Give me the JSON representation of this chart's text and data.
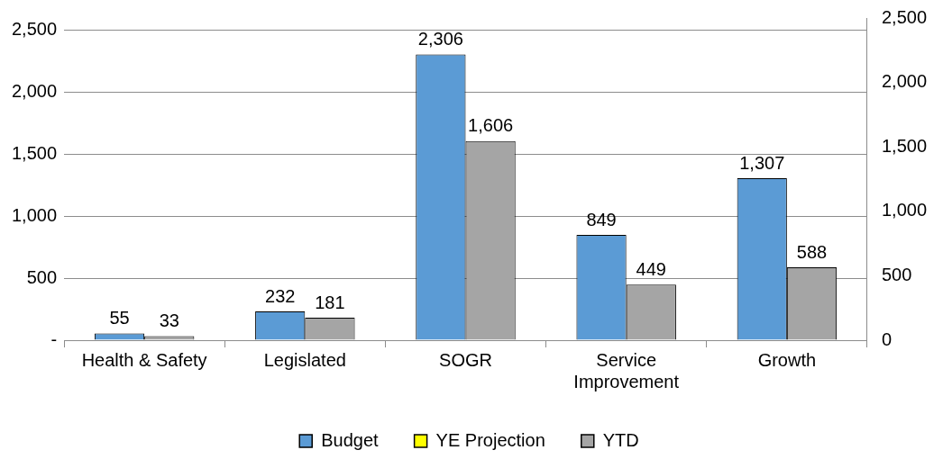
{
  "chart_data": {
    "type": "bar",
    "categories": [
      "Health & Safety",
      "Legislated",
      "SOGR",
      "Service Improvement",
      "Growth"
    ],
    "series": [
      {
        "name": "Budget",
        "color": "#5b9bd5",
        "values": [
          55,
          232,
          2306,
          849,
          1307
        ],
        "value_labels": [
          "55",
          "232",
          "2,306",
          "849",
          "1,307"
        ]
      },
      {
        "name": "YE Projection",
        "color": "#ffff00",
        "axis": "y2",
        "values": [
          null,
          null,
          null,
          null,
          null
        ]
      },
      {
        "name": "YTD",
        "color": "#a5a5a5",
        "values": [
          33,
          181,
          1606,
          449,
          588
        ],
        "value_labels": [
          "33",
          "181",
          "1,606",
          "449",
          "588"
        ]
      }
    ],
    "ylim": [
      0,
      2600
    ],
    "yticks": [
      {
        "value": 0,
        "label": "-"
      },
      {
        "value": 500,
        "label": "500"
      },
      {
        "value": 1000,
        "label": "1,000"
      },
      {
        "value": 1500,
        "label": "1,500"
      },
      {
        "value": 2000,
        "label": "2,000"
      },
      {
        "value": 2500,
        "label": "2,500"
      }
    ],
    "y2lim": [
      0,
      2500
    ],
    "y2ticks": [
      0,
      {
        "value": 500,
        "label": "500"
      },
      {
        "value": 1000,
        "label": "1,000"
      },
      {
        "value": 1500,
        "label": "1,500"
      },
      {
        "value": 2000,
        "label": "2,000"
      },
      {
        "value": 2500,
        "label": "2,500"
      }
    ],
    "grid": "y",
    "legend": "bottom"
  }
}
